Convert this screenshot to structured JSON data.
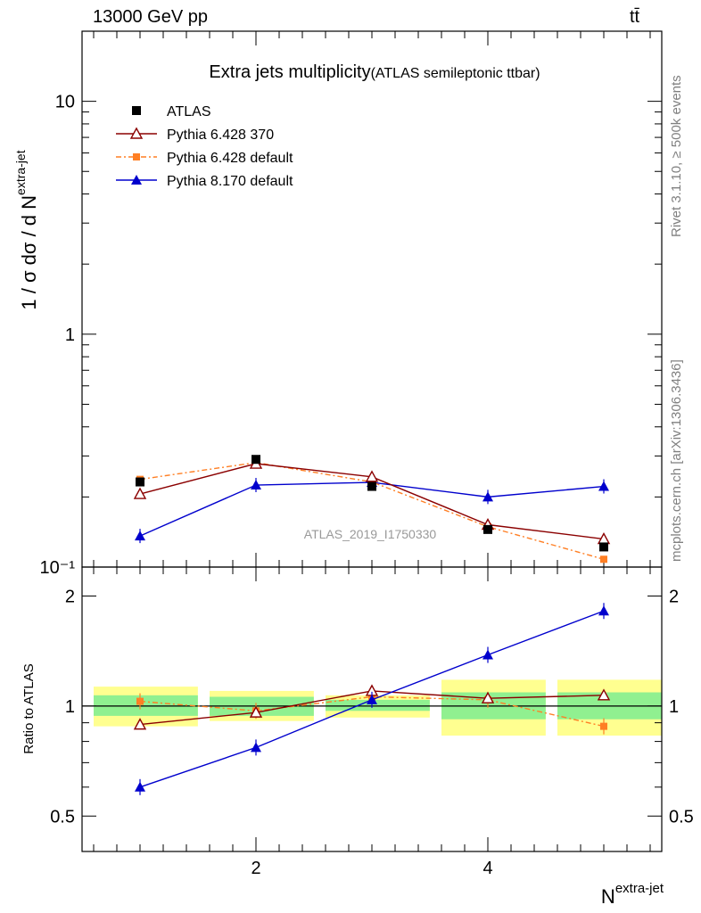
{
  "header": {
    "energy": "13000 GeV pp",
    "process": "tt̄"
  },
  "side": {
    "rivet": "Rivet 3.1.10, ≥ 500k events",
    "mcplots": "mcplots.cern.ch [arXiv:1306.3436]"
  },
  "colors": {
    "atlas": "#000000",
    "py6_370": "#8b0000",
    "py6_default": "#ff7f24",
    "py8_default": "#0000cd",
    "band_inner": "#90f090",
    "band_outer": "#ffff90"
  },
  "chart_data": [
    {
      "type": "line",
      "title": "Extra jets multiplicity",
      "subtitle": "(ATLAS semileptonic ttbar)",
      "ylabel": "1 / σ dσ / d N^extra-jet",
      "analysis_label": "ATLAS_2019_I1750330",
      "yscale": "log",
      "ylim": [
        0.1,
        20
      ],
      "xlim": [
        0.5,
        5.5
      ],
      "y_ticks": [
        {
          "value": 0.1,
          "label": "10⁻¹"
        },
        {
          "value": 1,
          "label": "1"
        },
        {
          "value": 10,
          "label": "10"
        }
      ],
      "x": [
        1,
        2,
        3,
        4,
        5
      ],
      "bins": [
        [
          0.5,
          1.5
        ],
        [
          1.5,
          2.5
        ],
        [
          2.5,
          3.5
        ],
        [
          3.5,
          4.5
        ],
        [
          4.5,
          5.5
        ]
      ],
      "legend_position": "top-left",
      "series": [
        {
          "name": "ATLAS",
          "key": "atlas",
          "marker": "square",
          "values": [
            0.232,
            0.29,
            0.222,
            0.145,
            0.122
          ]
        },
        {
          "name": "Pythia 6.428 370",
          "key": "py6_370",
          "marker": "open-triangle",
          "values": [
            0.206,
            0.278,
            0.244,
            0.152,
            0.132
          ]
        },
        {
          "name": "Pythia 6.428 default",
          "key": "py6_default",
          "marker": "small-square",
          "values": [
            0.238,
            0.281,
            0.232,
            0.149,
            0.108
          ]
        },
        {
          "name": "Pythia 8.170 default",
          "key": "py8_default",
          "marker": "filled-triangle",
          "values": [
            0.136,
            0.225,
            0.231,
            0.2,
            0.222
          ]
        }
      ]
    },
    {
      "type": "line",
      "ylabel": "Ratio to ATLAS",
      "xlabel": "N^extra-jet",
      "yscale": "log",
      "ylim": [
        0.4,
        2.4
      ],
      "xlim": [
        0.5,
        5.5
      ],
      "x_ticks": [
        2,
        4
      ],
      "y_ticks": [
        0.5,
        1,
        2
      ],
      "x": [
        1,
        2,
        3,
        4,
        5
      ],
      "band_inner": [
        [
          0.94,
          1.07
        ],
        [
          0.94,
          1.06
        ],
        [
          0.97,
          1.04
        ],
        [
          0.92,
          1.09
        ],
        [
          0.92,
          1.09
        ]
      ],
      "band_outer": [
        [
          0.88,
          1.13
        ],
        [
          0.91,
          1.1
        ],
        [
          0.93,
          1.07
        ],
        [
          0.83,
          1.18
        ],
        [
          0.83,
          1.18
        ]
      ],
      "series": [
        {
          "name": "Pythia 6.428 370",
          "key": "py6_370",
          "values": [
            0.89,
            0.96,
            1.1,
            1.05,
            1.07
          ]
        },
        {
          "name": "Pythia 6.428 default",
          "key": "py6_default",
          "values": [
            1.03,
            0.97,
            1.06,
            1.04,
            0.88
          ]
        },
        {
          "name": "Pythia 8.170 default",
          "key": "py8_default",
          "values": [
            0.6,
            0.77,
            1.04,
            1.38,
            1.82
          ]
        }
      ]
    }
  ]
}
